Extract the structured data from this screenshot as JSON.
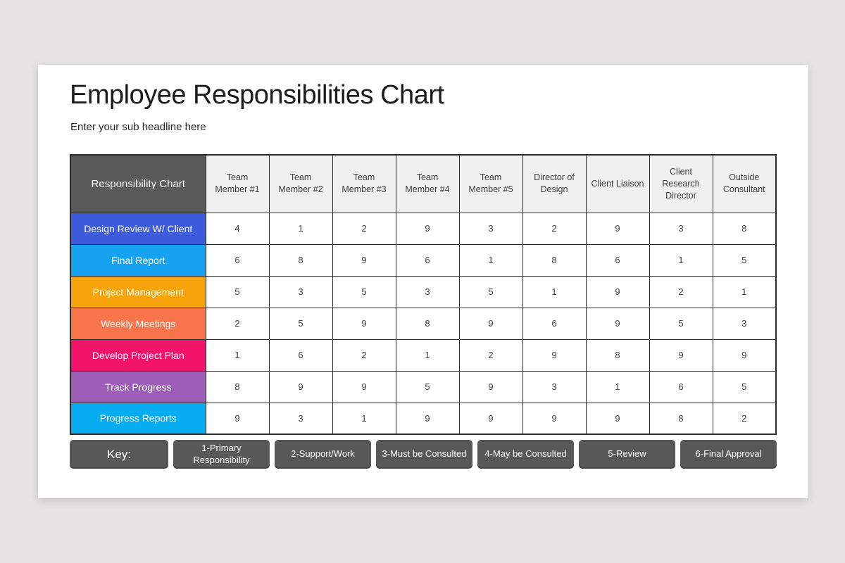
{
  "slide": {
    "title": "Employee Responsibilities Chart",
    "subtitle": "Enter your sub headline here"
  },
  "colors": {
    "page_background": "#E6E4E5",
    "card_background": "#FFFFFF",
    "table_border": "#2B2B2B",
    "corner_header_bg": "#595959",
    "column_header_bg": "#F0F0F0",
    "key_pill_bg": "#585858"
  },
  "chart_data": {
    "type": "table",
    "corner_label": "Responsibility Chart",
    "columns": [
      "Team Member #1",
      "Team Member #2",
      "Team Member #3",
      "Team Member #4",
      "Team Member #5",
      "Director of Design",
      "Client Liaison",
      "Client Research Director",
      "Outside Consultant"
    ],
    "rows": [
      {
        "label": "Design Review W/ Client",
        "color": "#3D5BDB",
        "values": [
          4,
          1,
          2,
          9,
          3,
          2,
          9,
          3,
          8
        ]
      },
      {
        "label": "Final Report",
        "color": "#18A2F2",
        "values": [
          6,
          8,
          9,
          6,
          1,
          8,
          6,
          1,
          5
        ]
      },
      {
        "label": "Project Management",
        "color": "#F7A30B",
        "values": [
          5,
          3,
          5,
          3,
          5,
          1,
          9,
          2,
          1
        ]
      },
      {
        "label": "Weekly Meetings",
        "color": "#F9744B",
        "values": [
          2,
          5,
          9,
          8,
          9,
          6,
          9,
          5,
          3
        ]
      },
      {
        "label": "Develop Project Plan",
        "color": "#F01369",
        "values": [
          1,
          6,
          2,
          1,
          2,
          9,
          8,
          9,
          9
        ]
      },
      {
        "label": "Track Progress",
        "color": "#9D5EB8",
        "values": [
          8,
          9,
          9,
          5,
          9,
          3,
          1,
          6,
          5
        ]
      },
      {
        "label": "Progress Reports",
        "color": "#07ADF0",
        "values": [
          9,
          3,
          1,
          9,
          9,
          9,
          9,
          8,
          2
        ]
      }
    ],
    "key": {
      "label": "Key:",
      "items": [
        "1-Primary Responsibility",
        "2-Support/Work",
        "3-Must be Consulted",
        "4-May be Consulted",
        "5-Review",
        "6-Final Approval"
      ]
    }
  }
}
